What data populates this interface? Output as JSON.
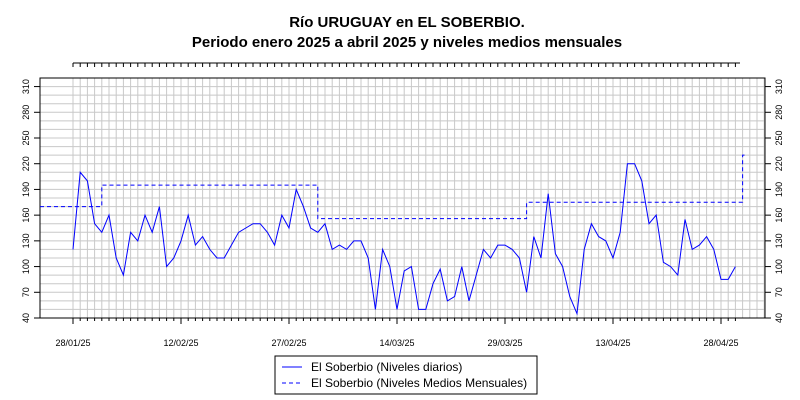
{
  "chart_data": {
    "type": "line",
    "title": "Río URUGUAY en EL SOBERBIO.",
    "subtitle": "Periodo enero 2025 a abril 2025 y niveles medios mensuales",
    "xlabel": "",
    "ylabel": "",
    "xlim": [
      "2025-01-28",
      "2025-05-01"
    ],
    "ylim": [
      40,
      320
    ],
    "grid": true,
    "legend_position": "bottom-center",
    "y_ticks": [
      40,
      70,
      100,
      130,
      160,
      190,
      220,
      250,
      280,
      310
    ],
    "x_tick_labels": [
      {
        "date": "2025-01-28",
        "label": "28/01/25"
      },
      {
        "date": "2025-02-12",
        "label": "12/02/25"
      },
      {
        "date": "2025-02-27",
        "label": "27/02/25"
      },
      {
        "date": "2025-03-14",
        "label": "14/03/25"
      },
      {
        "date": "2025-03-29",
        "label": "29/03/25"
      },
      {
        "date": "2025-04-13",
        "label": "13/04/25"
      },
      {
        "date": "2025-04-28",
        "label": "28/04/25"
      }
    ],
    "series": [
      {
        "name": "El Soberbio (Niveles diarios)",
        "style": "solid",
        "color": "#0000ff",
        "points": [
          [
            "2025-01-28",
            120
          ],
          [
            "2025-01-29",
            210
          ],
          [
            "2025-01-30",
            200
          ],
          [
            "2025-01-31",
            150
          ],
          [
            "2025-02-01",
            140
          ],
          [
            "2025-02-02",
            160
          ],
          [
            "2025-02-03",
            110
          ],
          [
            "2025-02-04",
            90
          ],
          [
            "2025-02-05",
            140
          ],
          [
            "2025-02-06",
            130
          ],
          [
            "2025-02-07",
            160
          ],
          [
            "2025-02-08",
            140
          ],
          [
            "2025-02-09",
            170
          ],
          [
            "2025-02-10",
            100
          ],
          [
            "2025-02-11",
            110
          ],
          [
            "2025-02-12",
            130
          ],
          [
            "2025-02-13",
            160
          ],
          [
            "2025-02-14",
            125
          ],
          [
            "2025-02-15",
            135
          ],
          [
            "2025-02-16",
            120
          ],
          [
            "2025-02-17",
            110
          ],
          [
            "2025-02-18",
            110
          ],
          [
            "2025-02-19",
            125
          ],
          [
            "2025-02-20",
            140
          ],
          [
            "2025-02-21",
            145
          ],
          [
            "2025-02-22",
            150
          ],
          [
            "2025-02-23",
            150
          ],
          [
            "2025-02-24",
            140
          ],
          [
            "2025-02-25",
            125
          ],
          [
            "2025-02-26",
            160
          ],
          [
            "2025-02-27",
            145
          ],
          [
            "2025-02-28",
            190
          ],
          [
            "2025-03-01",
            170
          ],
          [
            "2025-03-02",
            145
          ],
          [
            "2025-03-03",
            140
          ],
          [
            "2025-03-04",
            150
          ],
          [
            "2025-03-05",
            120
          ],
          [
            "2025-03-06",
            125
          ],
          [
            "2025-03-07",
            120
          ],
          [
            "2025-03-08",
            130
          ],
          [
            "2025-03-09",
            130
          ],
          [
            "2025-03-10",
            110
          ],
          [
            "2025-03-11",
            50
          ],
          [
            "2025-03-12",
            120
          ],
          [
            "2025-03-13",
            100
          ],
          [
            "2025-03-14",
            50
          ],
          [
            "2025-03-15",
            95
          ],
          [
            "2025-03-16",
            100
          ],
          [
            "2025-03-17",
            50
          ],
          [
            "2025-03-18",
            50
          ],
          [
            "2025-03-19",
            80
          ],
          [
            "2025-03-20",
            97
          ],
          [
            "2025-03-21",
            60
          ],
          [
            "2025-03-22",
            65
          ],
          [
            "2025-03-23",
            100
          ],
          [
            "2025-03-24",
            60
          ],
          [
            "2025-03-25",
            90
          ],
          [
            "2025-03-26",
            120
          ],
          [
            "2025-03-27",
            110
          ],
          [
            "2025-03-28",
            125
          ],
          [
            "2025-03-29",
            125
          ],
          [
            "2025-03-30",
            120
          ],
          [
            "2025-03-31",
            110
          ],
          [
            "2025-04-01",
            70
          ],
          [
            "2025-04-02",
            135
          ],
          [
            "2025-04-03",
            110
          ],
          [
            "2025-04-04",
            185
          ],
          [
            "2025-04-05",
            115
          ],
          [
            "2025-04-06",
            100
          ],
          [
            "2025-04-07",
            65
          ],
          [
            "2025-04-08",
            45
          ],
          [
            "2025-04-09",
            120
          ],
          [
            "2025-04-10",
            150
          ],
          [
            "2025-04-11",
            135
          ],
          [
            "2025-04-12",
            130
          ],
          [
            "2025-04-13",
            110
          ],
          [
            "2025-04-14",
            140
          ],
          [
            "2025-04-15",
            220
          ],
          [
            "2025-04-16",
            220
          ],
          [
            "2025-04-17",
            200
          ],
          [
            "2025-04-18",
            150
          ],
          [
            "2025-04-19",
            160
          ],
          [
            "2025-04-20",
            105
          ],
          [
            "2025-04-21",
            100
          ],
          [
            "2025-04-22",
            90
          ],
          [
            "2025-04-23",
            155
          ],
          [
            "2025-04-24",
            120
          ],
          [
            "2025-04-25",
            125
          ],
          [
            "2025-04-26",
            135
          ],
          [
            "2025-04-27",
            120
          ],
          [
            "2025-04-28",
            85
          ],
          [
            "2025-04-29",
            85
          ],
          [
            "2025-04-30",
            100
          ]
        ]
      },
      {
        "name": "El Soberbio (Niveles Medios Mensuales)",
        "style": "dashed",
        "color": "#0000ff",
        "steps": [
          {
            "start": "2025-01-28",
            "end": "2025-02-01",
            "value": 170
          },
          {
            "start": "2025-02-01",
            "end": "2025-03-03",
            "value": 195
          },
          {
            "start": "2025-03-03",
            "end": "2025-04-01",
            "value": 156
          },
          {
            "start": "2025-04-01",
            "end": "2025-05-01",
            "value": 175
          },
          {
            "start": "2025-05-01",
            "end": "2025-05-04",
            "value": 230
          }
        ]
      }
    ]
  }
}
